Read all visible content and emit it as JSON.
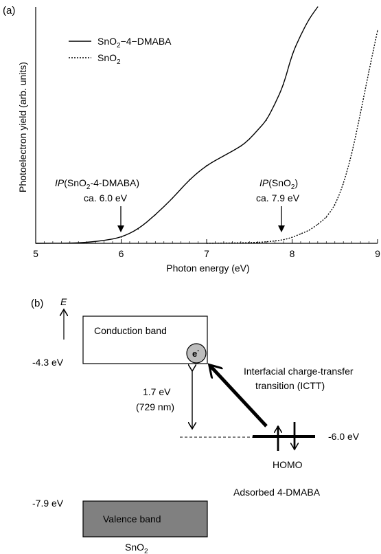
{
  "panel_a": {
    "label": "(a)",
    "ylabel": "Photoelectron yield (arb. units)",
    "xlabel": "Photon energy (eV)",
    "ann_dmaba_ip": "IP",
    "ann_dmaba_mat": "(SnO",
    "ann_dmaba_sub": "2",
    "ann_dmaba_rest": "-4-DMABA)",
    "ann_dmaba_val": "ca. 6.0 eV",
    "ann_sno2_ip": "IP",
    "ann_sno2_mat": "(SnO",
    "ann_sno2_sub": "2",
    "ann_sno2_rest": ")",
    "ann_sno2_val": "ca. 7.9 eV"
  },
  "chart_data": {
    "type": "line",
    "title": "",
    "xlabel": "Photon energy (eV)",
    "ylabel": "Photoelectron yield (arb. units)",
    "xlim": [
      5,
      9
    ],
    "xticks": [
      "5",
      "6",
      "7",
      "8",
      "9"
    ],
    "ylim": [
      0,
      100
    ],
    "legend_position": "top-left",
    "series": [
      {
        "name": "SnO2-4-DMABA",
        "style": "solid",
        "x": [
          5.0,
          5.4,
          5.6,
          5.8,
          6.0,
          6.2,
          6.4,
          6.6,
          6.8,
          7.0,
          7.2,
          7.4,
          7.5,
          7.6,
          7.7,
          7.8,
          7.9,
          8.0,
          8.1,
          8.2,
          8.3
        ],
        "y": [
          0,
          0.1,
          0.4,
          1.2,
          2.5,
          6,
          12,
          19,
          27,
          33,
          37,
          41,
          44,
          48,
          52,
          59,
          67,
          80,
          88,
          95,
          100
        ]
      },
      {
        "name": "SnO2",
        "style": "dotted",
        "x": [
          7.0,
          7.6,
          7.8,
          7.9,
          8.0,
          8.1,
          8.2,
          8.3,
          8.4,
          8.5,
          8.6,
          8.7,
          8.8,
          8.9,
          9.0
        ],
        "y": [
          0,
          0.3,
          1,
          1.5,
          2.5,
          4,
          5.5,
          8,
          11,
          16,
          25,
          38,
          55,
          73,
          90
        ]
      }
    ],
    "legend": [
      {
        "main": "SnO",
        "sub": "2",
        "rest": "−4−DMABA"
      },
      {
        "main": "SnO",
        "sub": "2",
        "rest": ""
      }
    ]
  },
  "panel_b": {
    "label": "(b)",
    "energy_axis": "E",
    "cb_label": "Conduction band",
    "vb_label": "Valence band",
    "cb_energy": "-4.3 eV",
    "vb_energy": "-7.9 eV",
    "electron": "e",
    "electron_sup": "-",
    "gap_value": "1.7 eV",
    "gap_wavelength": "(729 nm)",
    "ictt_line1": "Interfacial charge-transfer",
    "ictt_line2": "transition (ICTT)",
    "homo_energy": "-6.0 eV",
    "homo_label": "HOMO",
    "adsorbed_label": "Adsorbed 4-DMABA",
    "sno2_main": "SnO",
    "sno2_sub": "2"
  }
}
